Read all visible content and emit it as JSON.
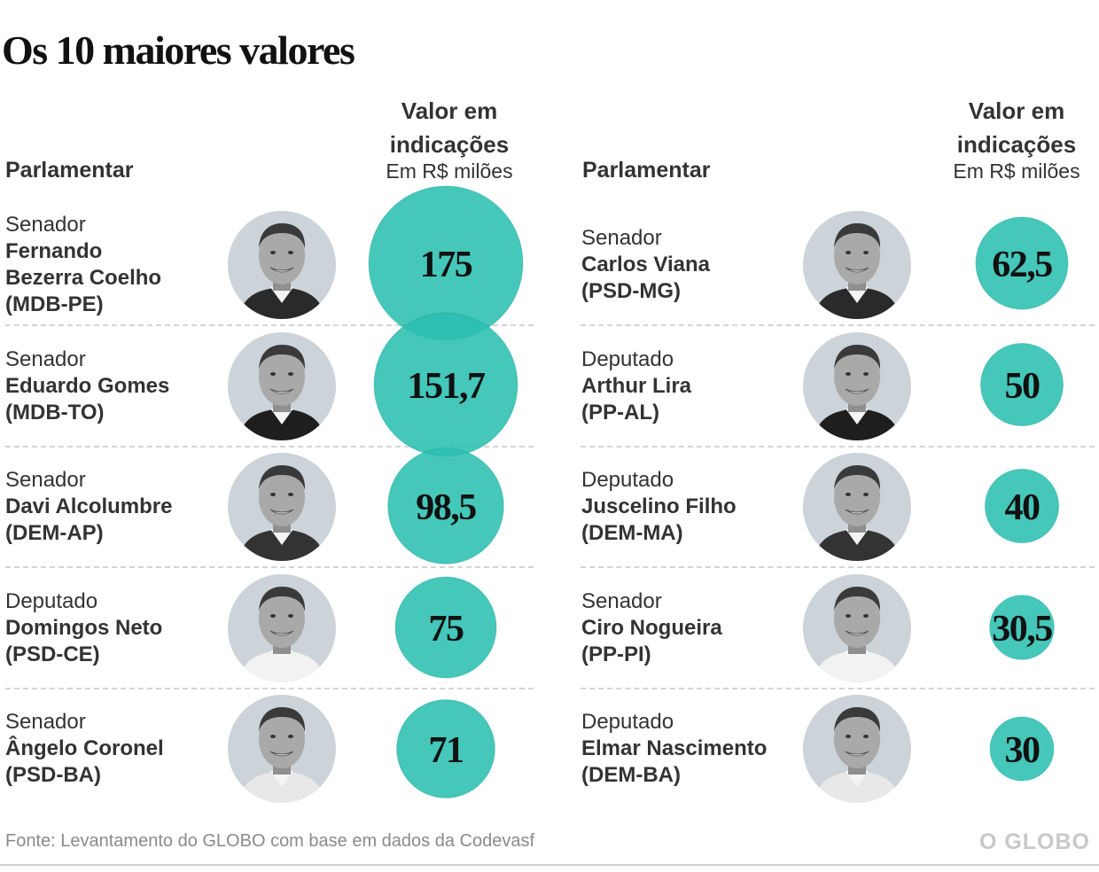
{
  "title": "Os 10 maiores valores",
  "headers": {
    "name": "Parlamentar",
    "value_line1": "Valor em",
    "value_line2": "indicações",
    "value_unit": "Em R$ milões"
  },
  "colors": {
    "bubble": "#2bbfb0",
    "bubble_outline": "#1c9c8f"
  },
  "chart_data": {
    "type": "bubble",
    "title": "Os 10 maiores valores",
    "value_label": "Valor em indicações",
    "unit": "Em R$ milões",
    "columns": [
      [
        {
          "role": "Senador",
          "name_lines": [
            "Fernando",
            "Bezerra Coelho"
          ],
          "party": "(MDB-PE)",
          "value": 175,
          "label": "175"
        },
        {
          "role": "Senador",
          "name_lines": [
            "Eduardo Gomes"
          ],
          "party": "(MDB-TO)",
          "value": 151.7,
          "label": "151,7"
        },
        {
          "role": "Senador",
          "name_lines": [
            "Davi Alcolumbre"
          ],
          "party": "(DEM-AP)",
          "value": 98.5,
          "label": "98,5"
        },
        {
          "role": "Deputado",
          "name_lines": [
            "Domingos Neto"
          ],
          "party": "(PSD-CE)",
          "value": 75,
          "label": "75"
        },
        {
          "role": "Senador",
          "name_lines": [
            "Ângelo Coronel"
          ],
          "party": "(PSD-BA)",
          "value": 71,
          "label": "71"
        }
      ],
      [
        {
          "role": "Senador",
          "name_lines": [
            "Carlos Viana"
          ],
          "party": "(PSD-MG)",
          "value": 62.5,
          "label": "62,5"
        },
        {
          "role": "Deputado",
          "name_lines": [
            "Arthur Lira"
          ],
          "party": "(PP-AL)",
          "value": 50,
          "label": "50"
        },
        {
          "role": "Deputado",
          "name_lines": [
            "Juscelino Filho"
          ],
          "party": "(DEM-MA)",
          "value": 40,
          "label": "40"
        },
        {
          "role": "Senador",
          "name_lines": [
            "Ciro Nogueira"
          ],
          "party": "(PP-PI)",
          "value": 30.5,
          "label": "30,5"
        },
        {
          "role": "Deputado",
          "name_lines": [
            "Elmar Nascimento"
          ],
          "party": "(DEM-BA)",
          "value": 30,
          "label": "30"
        }
      ]
    ]
  },
  "footer": {
    "source": "Fonte: Levantamento do GLOBO com base em dados da Codevasf",
    "logo": "O GLOBO"
  }
}
